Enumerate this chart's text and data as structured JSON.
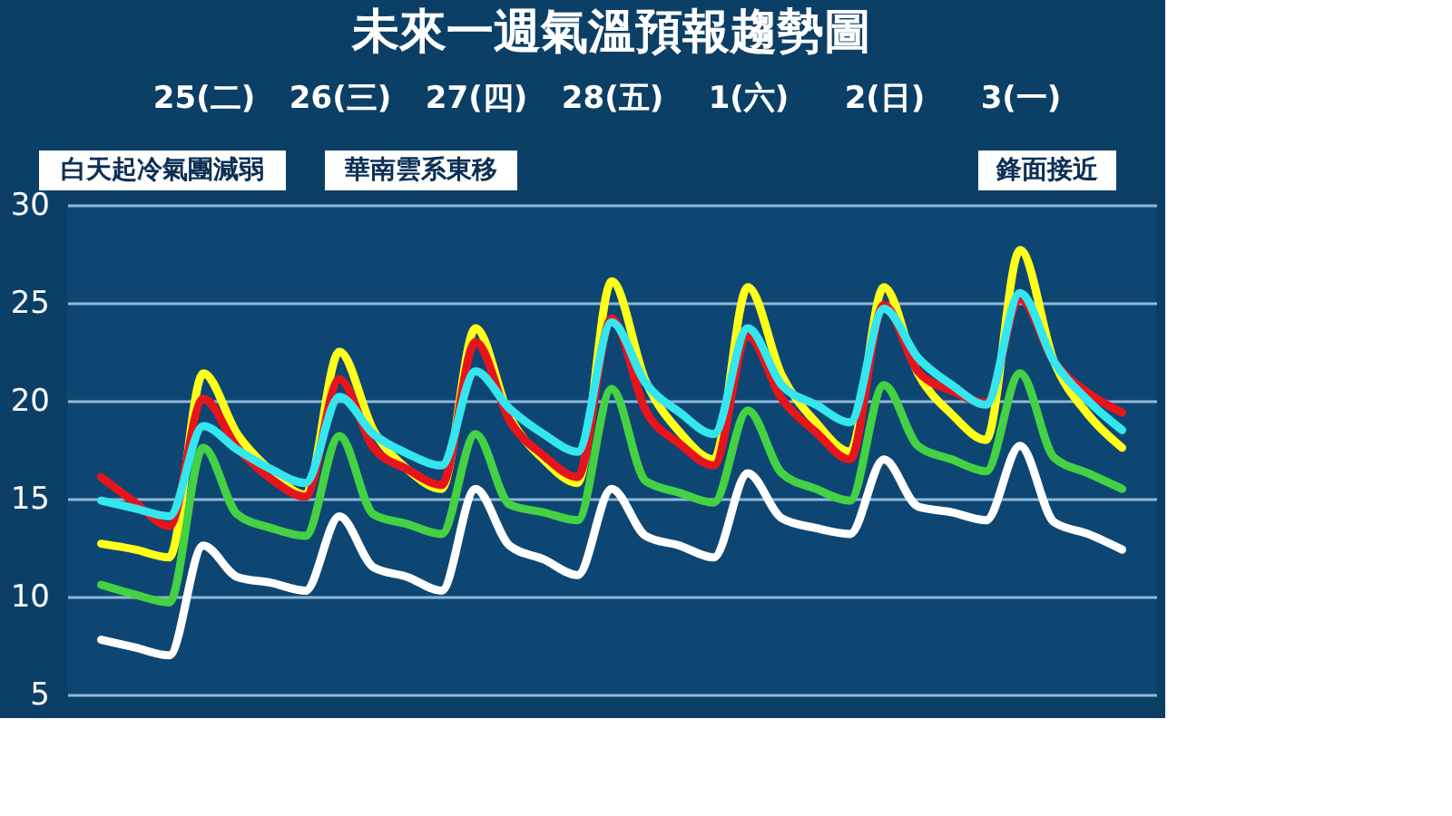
{
  "chart_data": {
    "type": "line",
    "title": "未來一週氣溫預報趨勢圖",
    "annotations": [
      "白天起冷氣團減弱",
      "華南雲系東移",
      "鋒面接近"
    ],
    "categories": [
      null,
      null,
      null,
      "25(二)",
      null,
      null,
      null,
      "26(三)",
      null,
      null,
      null,
      "27(四)",
      null,
      null,
      null,
      "28(五)",
      null,
      null,
      null,
      "1(六)",
      null,
      null,
      null,
      "2(日)",
      null,
      null,
      null,
      "3(一)",
      null,
      null,
      null
    ],
    "ylim": [
      5,
      30
    ],
    "yticks": [
      5,
      10,
      15,
      20,
      25,
      30
    ],
    "grid": "y",
    "legend": false,
    "marker": "none",
    "line_style": "solid",
    "series": [
      {
        "color": "#ffffff",
        "values": [
          7.8,
          7.4,
          7.0,
          12.6,
          11.0,
          10.7,
          10.3,
          14.1,
          11.5,
          11.0,
          10.3,
          15.5,
          12.6,
          11.9,
          11.1,
          15.5,
          13.1,
          12.6,
          12.0,
          16.3,
          14.0,
          13.5,
          13.2,
          17.0,
          14.6,
          14.3,
          13.9,
          17.7,
          13.8,
          13.2,
          12.4
        ]
      },
      {
        "color": "#44d144",
        "values": [
          10.6,
          10.1,
          9.7,
          17.6,
          14.2,
          13.5,
          13.1,
          18.2,
          14.2,
          13.7,
          13.2,
          18.3,
          14.7,
          14.3,
          13.9,
          20.6,
          15.9,
          15.3,
          14.8,
          19.5,
          16.3,
          15.5,
          14.9,
          20.8,
          17.7,
          17.0,
          16.4,
          21.4,
          17.1,
          16.3,
          15.5
        ]
      },
      {
        "color": "#ffff1a",
        "values": [
          12.7,
          12.4,
          12.0,
          21.4,
          18.3,
          16.4,
          15.2,
          22.5,
          18.5,
          16.5,
          15.5,
          23.7,
          19.2,
          17.0,
          15.8,
          26.1,
          21.0,
          18.4,
          17.0,
          25.8,
          21.3,
          18.9,
          17.4,
          25.8,
          21.4,
          19.3,
          18.0,
          27.7,
          22.0,
          19.3,
          17.6
        ]
      },
      {
        "color": "#e8141c",
        "values": [
          16.1,
          14.8,
          13.6,
          20.1,
          17.6,
          16.0,
          15.1,
          21.1,
          17.6,
          16.5,
          15.7,
          23.0,
          19.0,
          17.2,
          16.1,
          24.2,
          19.5,
          17.8,
          16.7,
          23.3,
          20.1,
          18.4,
          17.0,
          24.9,
          21.5,
          20.5,
          19.9,
          25.2,
          22.0,
          20.4,
          19.4
        ]
      },
      {
        "color": "#33e6f0",
        "values": [
          14.9,
          14.5,
          14.1,
          18.7,
          17.5,
          16.5,
          15.8,
          20.2,
          18.3,
          17.3,
          16.7,
          21.5,
          19.6,
          18.3,
          17.4,
          24.0,
          20.9,
          19.4,
          18.3,
          23.7,
          20.8,
          19.8,
          18.9,
          24.7,
          22.2,
          20.8,
          19.8,
          25.5,
          22.0,
          20.0,
          18.5
        ]
      }
    ]
  }
}
